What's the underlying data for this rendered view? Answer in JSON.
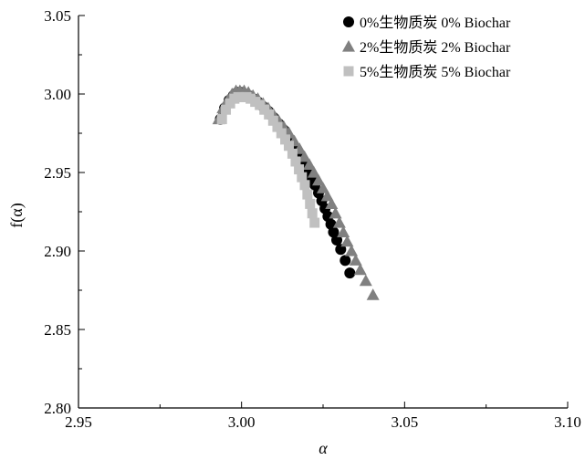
{
  "chart_data": {
    "type": "scatter",
    "xlabel": "α",
    "ylabel": "f(α)",
    "xlim": [
      2.95,
      3.1
    ],
    "ylim": [
      2.8,
      3.05
    ],
    "x_ticks": [
      "2.95",
      "3.00",
      "3.05",
      "3.10"
    ],
    "y_ticks": [
      "2.80",
      "2.85",
      "2.90",
      "2.95",
      "3.00",
      "3.05"
    ],
    "grid": false,
    "legend_position": "top-right",
    "series": [
      {
        "name": "0%生物质炭 0% Biochar",
        "marker": "circle",
        "color": "#000000",
        "x": [
          2.9935,
          2.9948,
          2.9962,
          2.9975,
          2.9987,
          2.9998,
          3.001,
          3.0022,
          3.0036,
          3.005,
          3.0066,
          3.0082,
          3.0098,
          3.0114,
          3.013,
          3.0145,
          3.016,
          3.0175,
          3.0188,
          3.0201,
          3.0213,
          3.0225,
          3.0236,
          3.0246,
          3.0256,
          3.0265,
          3.0274,
          3.0282,
          3.0292,
          3.0304,
          3.0318,
          3.0332
        ],
        "y": [
          2.984,
          2.991,
          2.996,
          2.999,
          3.001,
          3.001,
          3.0,
          2.999,
          2.997,
          2.995,
          2.992,
          2.989,
          2.985,
          2.981,
          2.977,
          2.972,
          2.967,
          2.962,
          2.957,
          2.952,
          2.947,
          2.942,
          2.937,
          2.932,
          2.927,
          2.922,
          2.917,
          2.912,
          2.907,
          2.901,
          2.894,
          2.886
        ]
      },
      {
        "name": "2%生物质炭 2% Biochar",
        "marker": "triangle",
        "color": "#808080",
        "x": [
          2.993,
          2.9943,
          2.9957,
          2.9971,
          2.9983,
          2.9995,
          3.0008,
          3.0021,
          3.0035,
          3.005,
          3.0066,
          3.0082,
          3.0098,
          3.0114,
          3.013,
          3.0146,
          3.0162,
          3.0178,
          3.0193,
          3.0208,
          3.0222,
          3.0236,
          3.025,
          3.0263,
          3.0276,
          3.0288,
          3.03,
          3.0312,
          3.0324,
          3.0337,
          3.035,
          3.0364,
          3.0381,
          3.0403
        ],
        "y": [
          2.984,
          2.991,
          2.996,
          3.0,
          3.002,
          3.002,
          3.002,
          3.001,
          2.999,
          2.997,
          2.994,
          2.991,
          2.987,
          2.983,
          2.979,
          2.975,
          2.97,
          2.965,
          2.96,
          2.955,
          2.95,
          2.945,
          2.94,
          2.935,
          2.93,
          2.924,
          2.918,
          2.912,
          2.906,
          2.9,
          2.894,
          2.888,
          2.881,
          2.872
        ]
      },
      {
        "name": "5%生物质炭 5% Biochar",
        "marker": "square",
        "color": "#c0c0c0",
        "x": [
          2.994,
          2.9952,
          2.9965,
          2.9978,
          2.999,
          3.0002,
          3.0015,
          3.0028,
          3.0042,
          3.0056,
          3.007,
          3.0084,
          3.0097,
          3.011,
          3.0122,
          3.0134,
          3.0145,
          3.0156,
          3.0166,
          3.0176,
          3.0185,
          3.0194,
          3.0202,
          3.021,
          3.0217,
          3.0224
        ],
        "y": [
          2.984,
          2.99,
          2.994,
          2.997,
          2.998,
          2.998,
          2.998,
          2.997,
          2.995,
          2.993,
          2.99,
          2.987,
          2.983,
          2.979,
          2.975,
          2.971,
          2.967,
          2.962,
          2.957,
          2.952,
          2.947,
          2.942,
          2.936,
          2.93,
          2.924,
          2.918
        ]
      }
    ]
  }
}
